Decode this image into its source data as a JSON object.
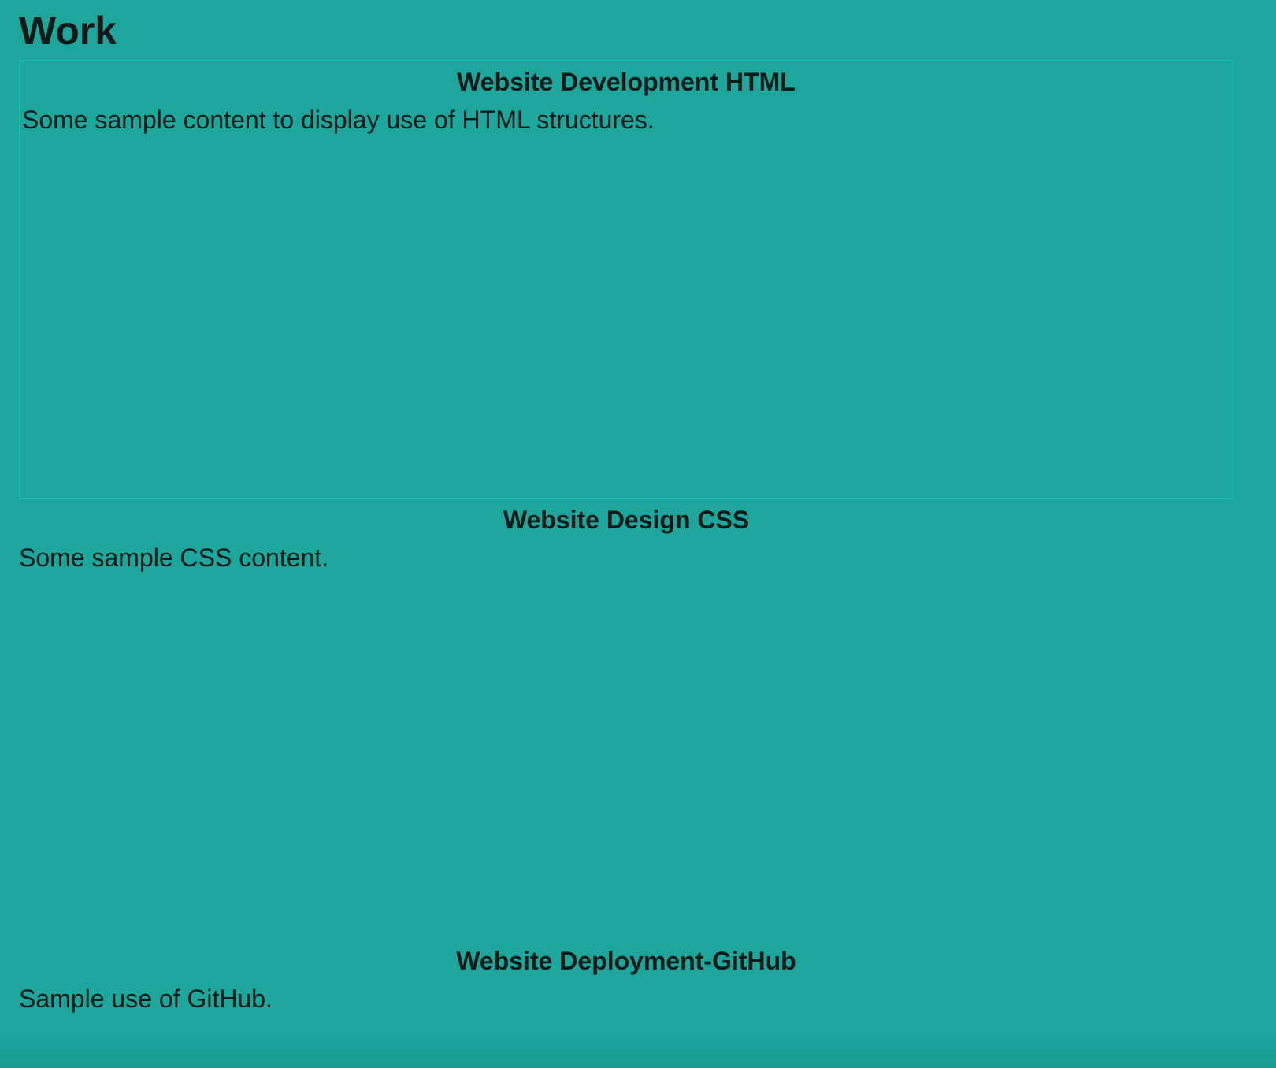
{
  "page": {
    "title": "Work"
  },
  "sections": [
    {
      "heading": "Website Development HTML",
      "text": "Some sample content to display use of HTML structures."
    },
    {
      "heading": "Website Design CSS",
      "text": "Some sample CSS content."
    },
    {
      "heading": "Website Deployment-GitHub",
      "text": "Sample use of GitHub."
    }
  ],
  "colors": {
    "background": "#1ca69c",
    "text": "#0d1a17",
    "highlight_border": "#16bba5"
  }
}
